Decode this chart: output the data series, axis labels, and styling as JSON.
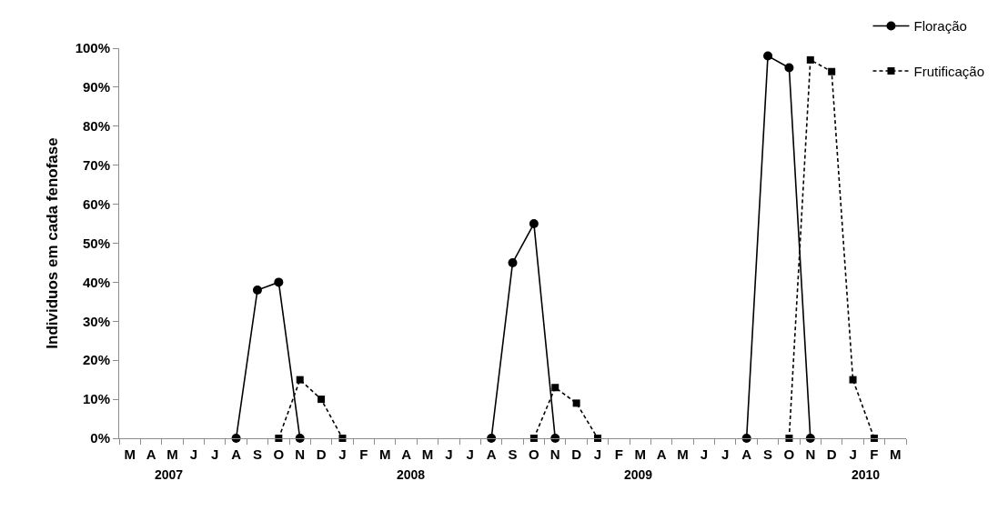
{
  "chart_data": {
    "type": "line",
    "categories": [
      "M",
      "A",
      "M",
      "J",
      "J",
      "A",
      "S",
      "O",
      "N",
      "D",
      "J",
      "F",
      "M",
      "A",
      "M",
      "J",
      "J",
      "A",
      "S",
      "O",
      "N",
      "D",
      "J",
      "F",
      "M",
      "A",
      "M",
      "J",
      "J",
      "A",
      "S",
      "O",
      "N",
      "D",
      "J",
      "F",
      "M"
    ],
    "series": [
      {
        "name": "Floração",
        "color": "#000000",
        "marker": "circle",
        "line_style": "solid",
        "values": [
          null,
          null,
          null,
          null,
          null,
          0,
          38,
          40,
          0,
          null,
          null,
          null,
          null,
          null,
          null,
          null,
          null,
          0,
          45,
          55,
          0,
          null,
          null,
          null,
          null,
          null,
          null,
          null,
          null,
          0,
          98,
          95,
          0,
          null,
          null,
          null,
          null
        ]
      },
      {
        "name": "Frutificação",
        "color": "#000000",
        "marker": "square",
        "line_style": "dashed",
        "values": [
          null,
          null,
          null,
          null,
          null,
          null,
          null,
          0,
          15,
          10,
          0,
          null,
          null,
          null,
          null,
          null,
          null,
          null,
          null,
          0,
          13,
          9,
          0,
          null,
          null,
          null,
          null,
          null,
          null,
          null,
          null,
          0,
          97,
          94,
          15,
          0,
          null
        ]
      }
    ],
    "ylabel": "Individuos em cada fenofase",
    "ylim": [
      0,
      100
    ],
    "yticks": [
      {
        "value": 0,
        "label": "0%"
      },
      {
        "value": 10,
        "label": "10%"
      },
      {
        "value": 20,
        "label": "20%"
      },
      {
        "value": 30,
        "label": "30%"
      },
      {
        "value": 40,
        "label": "40%"
      },
      {
        "value": 50,
        "label": "50%"
      },
      {
        "value": 60,
        "label": "60%"
      },
      {
        "value": 70,
        "label": "70%"
      },
      {
        "value": 80,
        "label": "80%"
      },
      {
        "value": 90,
        "label": "90%"
      },
      {
        "value": 100,
        "label": "100%"
      }
    ],
    "annotations": [
      "2007",
      "2008",
      "2009",
      "2010"
    ],
    "legend": "top right",
    "grid": false
  }
}
